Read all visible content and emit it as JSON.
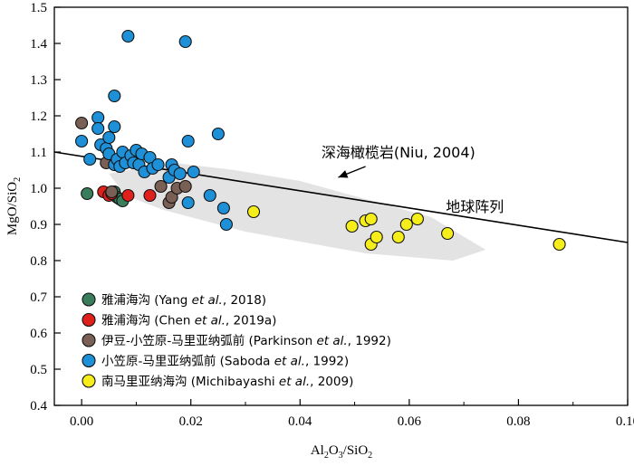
{
  "chart_data": {
    "type": "scatter",
    "xlabel": "Al2O3/SiO2",
    "ylabel": "MgO/SiO2",
    "xlim": [
      -0.005,
      0.1
    ],
    "ylim": [
      0.4,
      1.5
    ],
    "x_ticks": [
      "0.00",
      "0.02",
      "0.04",
      "0.06",
      "0.08",
      "0.10"
    ],
    "x_tick_values": [
      0.0,
      0.02,
      0.04,
      0.06,
      0.08,
      0.1
    ],
    "y_ticks": [
      "0.4",
      "0.5",
      "0.6",
      "0.7",
      "0.8",
      "0.9",
      "1.0",
      "1.1",
      "1.2",
      "1.3",
      "1.4",
      "1.5"
    ],
    "y_tick_values": [
      0.4,
      0.5,
      0.6,
      0.7,
      0.8,
      0.9,
      1.0,
      1.1,
      1.2,
      1.3,
      1.4,
      1.5
    ],
    "grid": false,
    "legend_position": "bottom-left",
    "abyssal_peridotite_field": [
      [
        0.005,
        1.04
      ],
      [
        0.012,
        1.06
      ],
      [
        0.017,
        1.07
      ],
      [
        0.028,
        1.05
      ],
      [
        0.04,
        1.02
      ],
      [
        0.052,
        0.97
      ],
      [
        0.064,
        0.92
      ],
      [
        0.074,
        0.83
      ],
      [
        0.068,
        0.8
      ],
      [
        0.052,
        0.82
      ],
      [
        0.03,
        0.88
      ],
      [
        0.015,
        0.94
      ],
      [
        0.008,
        0.98
      ]
    ],
    "array_line": {
      "x": [
        -0.005,
        0.1
      ],
      "y": [
        1.1,
        0.85
      ]
    },
    "annotations": [
      {
        "text": "深海橄榄岩(Niu, 2004)",
        "x": 0.058,
        "y": 1.085
      },
      {
        "text": "地球阵列",
        "x": 0.072,
        "y": 0.935
      }
    ],
    "arrow": {
      "from": [
        0.052,
        1.06
      ],
      "to": [
        0.047,
        1.03
      ]
    },
    "series": [
      {
        "name": "雅浦海沟 (Yang et al., 2018)",
        "legend_parts": [
          "雅浦海沟 (Yang ",
          "et al.",
          ", 2018)"
        ],
        "color": "#3a7d5c",
        "x": [
          0.001,
          0.006,
          0.0065,
          0.007,
          0.0075
        ],
        "y": [
          0.985,
          0.99,
          0.975,
          0.97,
          0.965
        ]
      },
      {
        "name": "雅浦海沟 (Chen et al., 2019a)",
        "legend_parts": [
          "雅浦海沟 (Chen ",
          "et al.",
          ", 2019a)"
        ],
        "color": "#e0201b",
        "x": [
          0.004,
          0.005,
          0.0055,
          0.0085,
          0.0125
        ],
        "y": [
          0.99,
          0.98,
          0.985,
          0.98,
          0.98
        ]
      },
      {
        "name": "伊豆-小笠原-马里亚纳弧前 (Parkinson et al., 1992)",
        "legend_parts": [
          "伊豆-小笠原-马里亚纳弧前  (Parkinson ",
          "et al.",
          ", 1992)"
        ],
        "color": "#7a5f55",
        "x": [
          0.0,
          0.0045,
          0.0055,
          0.0145,
          0.016,
          0.0165,
          0.0175,
          0.019
        ],
        "y": [
          1.18,
          1.07,
          0.99,
          1.005,
          0.96,
          0.975,
          1.0,
          1.005
        ]
      },
      {
        "name": "小笠原-马里亚纳弧前 (Saboda et al., 1992)",
        "legend_parts": [
          "小笠原-马里亚纳弧前  (Saboda ",
          "et al.",
          ", 1992)"
        ],
        "color": "#1e90d8",
        "x": [
          0.0,
          0.0015,
          0.003,
          0.003,
          0.0035,
          0.0045,
          0.005,
          0.005,
          0.006,
          0.006,
          0.006,
          0.0065,
          0.007,
          0.0075,
          0.008,
          0.0085,
          0.009,
          0.0095,
          0.01,
          0.0105,
          0.011,
          0.0115,
          0.0125,
          0.013,
          0.014,
          0.016,
          0.0165,
          0.017,
          0.018,
          0.019,
          0.0195,
          0.0195,
          0.0205,
          0.0235,
          0.025,
          0.026,
          0.0265
        ],
        "y": [
          1.13,
          1.08,
          1.195,
          1.165,
          1.12,
          1.11,
          1.095,
          1.14,
          1.255,
          1.17,
          1.065,
          1.08,
          1.06,
          1.1,
          1.07,
          1.42,
          1.09,
          1.07,
          1.105,
          1.065,
          1.095,
          1.045,
          1.085,
          1.055,
          1.065,
          1.03,
          1.065,
          1.05,
          1.04,
          1.405,
          1.13,
          0.96,
          1.045,
          0.98,
          1.15,
          0.945,
          0.9
        ],
        "x_note": "approximate"
      },
      {
        "name": "南马里亚纳海沟 (Michibayashi et al., 2009)",
        "legend_parts": [
          "南马里亚纳海沟 (Michibayashi ",
          "et al.",
          ", 2009)"
        ],
        "color": "#f5ee1a",
        "x": [
          0.0315,
          0.0495,
          0.052,
          0.053,
          0.053,
          0.054,
          0.058,
          0.0595,
          0.0615,
          0.067,
          0.0875
        ],
        "y": [
          0.935,
          0.895,
          0.91,
          0.915,
          0.845,
          0.865,
          0.865,
          0.9,
          0.915,
          0.875,
          0.845
        ]
      }
    ]
  }
}
